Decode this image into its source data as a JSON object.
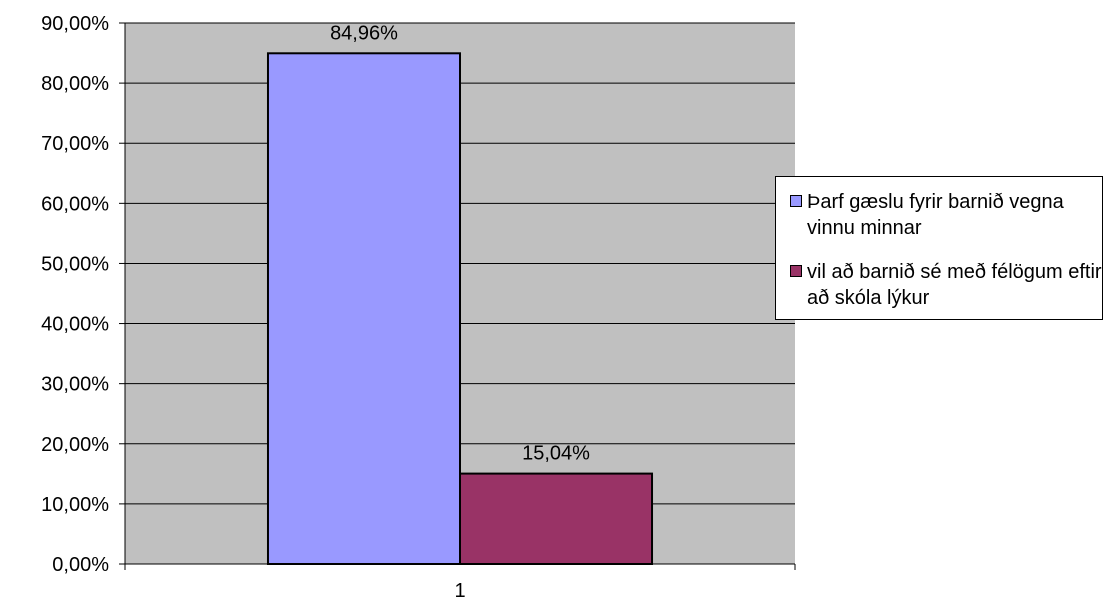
{
  "chart_data": {
    "type": "bar",
    "categories": [
      "1"
    ],
    "series": [
      {
        "name": "Þarf gæslu fyrir barnið vegna vinnu minnar",
        "values": [
          84.96
        ],
        "label": "84,96%",
        "color": "#9999ff"
      },
      {
        "name": "vil að barnið sé með félögum eftir að skóla lýkur",
        "values": [
          15.04
        ],
        "label": "15,04%",
        "color": "#993366"
      }
    ],
    "ylim": [
      0,
      90
    ],
    "yticks": [
      "0,00%",
      "10,00%",
      "20,00%",
      "30,00%",
      "40,00%",
      "50,00%",
      "60,00%",
      "70,00%",
      "80,00%",
      "90,00%"
    ],
    "grid": true,
    "legend_position": "right",
    "plot_background": "#c0c0c0"
  }
}
